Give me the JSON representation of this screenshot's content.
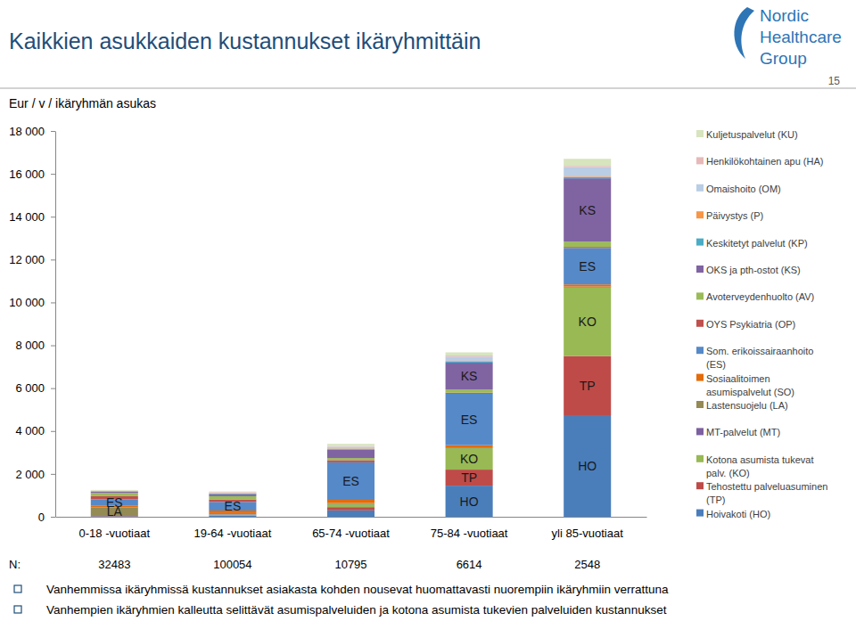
{
  "chart_data": {
    "type": "bar",
    "stacked": true,
    "grid": false,
    "legend": "right",
    "title": "Kaikkien asukkaiden kustannukset ikäryhmittäin",
    "y_label": "Eur / v / ikäryhmän asukas",
    "page_number": "15",
    "logo": [
      "Nordic",
      "Healthcare",
      "Group"
    ],
    "categories": [
      "0-18 -vuotiaat",
      "19-64 -vuotiaat",
      "65-74 -vuotiaat",
      "75-84 -vuotiaat",
      "yli 85-vuotiaat"
    ],
    "ylim": [
      0,
      18000
    ],
    "yticks": [
      0,
      {
        "value": 2000,
        "label": "2 000"
      },
      {
        "value": 4000,
        "label": "4 000"
      },
      {
        "value": 6000,
        "label": "6 000"
      },
      {
        "value": 8000,
        "label": "8 000"
      },
      {
        "value": 10000,
        "label": "10 000"
      },
      {
        "value": 12000,
        "label": "12 000"
      },
      {
        "value": 14000,
        "label": "14 000"
      },
      {
        "value": 16000,
        "label": "16 000"
      },
      {
        "value": 18000,
        "label": "18 000"
      }
    ],
    "series": [
      {
        "name": "Hoivakoti (HO)",
        "color": "#4a7ebb",
        "values": [
          0,
          50,
          300,
          1450,
          4700
        ]
      },
      {
        "name": "Tehostettu palveluasuminen (TP)",
        "color": "#be4b48",
        "values": [
          0,
          20,
          150,
          750,
          2800
        ]
      },
      {
        "name": "Kotona asumista tukevat palv. (KO)",
        "color": "#98b954",
        "values": [
          0,
          30,
          150,
          1000,
          3200
        ]
      },
      {
        "name": "MT-palvelut (MT)",
        "color": "#7d60a0",
        "values": [
          30,
          20,
          30,
          30,
          30
        ]
      },
      {
        "name": "Lastensuojelu (LA)",
        "color": "#948a54",
        "values": [
          400,
          50,
          10,
          10,
          10
        ]
      },
      {
        "name": "Sosiaalitoimen asumispalvelut (SO)",
        "color": "#e46c0a",
        "values": [
          80,
          120,
          150,
          100,
          100
        ]
      },
      {
        "name": "Som. erikoissairaanhoito (ES)",
        "color": "#5689c8",
        "values": [
          300,
          400,
          1750,
          2400,
          1700
        ]
      },
      {
        "name": "OYS Psykiatria (OP)",
        "color": "#c0504d",
        "values": [
          150,
          120,
          100,
          50,
          50
        ]
      },
      {
        "name": "Avoterveydenhuolto (AV)",
        "color": "#9bbb59",
        "values": [
          150,
          150,
          100,
          150,
          250
        ]
      },
      {
        "name": "OKS ja pth-ostot (KS)",
        "color": "#8064a2",
        "values": [
          60,
          100,
          400,
          1250,
          2950
        ]
      },
      {
        "name": "Keskitetyt palvelut (KP)",
        "color": "#4bacc6",
        "values": [
          20,
          20,
          30,
          50,
          50
        ]
      },
      {
        "name": "Päivystys (P)",
        "color": "#f79646",
        "values": [
          10,
          20,
          20,
          30,
          30
        ]
      },
      {
        "name": "Omaishoito (OM)",
        "color": "#b9cde5",
        "values": [
          0,
          20,
          80,
          200,
          450
        ]
      },
      {
        "name": "Henkilökohtainen apu (HA)",
        "color": "#e6b9b8",
        "values": [
          20,
          30,
          30,
          50,
          50
        ]
      },
      {
        "name": "Kuljetuspalvelut (KU)",
        "color": "#d7e4bd",
        "values": [
          30,
          30,
          100,
          150,
          330
        ]
      }
    ],
    "annotations": [
      {
        "text": "ES",
        "category": 0,
        "series": 6
      },
      {
        "text": "LA",
        "category": 0,
        "series": 4
      },
      {
        "text": "ES",
        "category": 1,
        "series": 6
      },
      {
        "text": "ES",
        "category": 2,
        "series": 6
      },
      {
        "text": "HO",
        "category": 3,
        "series": 0
      },
      {
        "text": "TP",
        "category": 3,
        "series": 1
      },
      {
        "text": "KO",
        "category": 3,
        "series": 2
      },
      {
        "text": "ES",
        "category": 3,
        "series": 6
      },
      {
        "text": "KS",
        "category": 3,
        "series": 9
      },
      {
        "text": "HO",
        "category": 4,
        "series": 0
      },
      {
        "text": "TP",
        "category": 4,
        "series": 1
      },
      {
        "text": "KO",
        "category": 4,
        "series": 2
      },
      {
        "text": "ES",
        "category": 4,
        "series": 6
      },
      {
        "text": "KS",
        "category": 4,
        "series": 9
      }
    ],
    "n_label": "N:",
    "n_values": [
      32483,
      100054,
      10795,
      6614,
      2548
    ],
    "bullets": [
      "Vanhemmissa ikäryhmissä kustannukset asiakasta kohden nousevat huomattavasti nuorempiin ikäryhmiin verrattuna",
      "Vanhempien ikäryhmien kalleutta selittävät asumispalveluiden ja kotona asumista tukevien palveluiden kustannukset"
    ]
  }
}
